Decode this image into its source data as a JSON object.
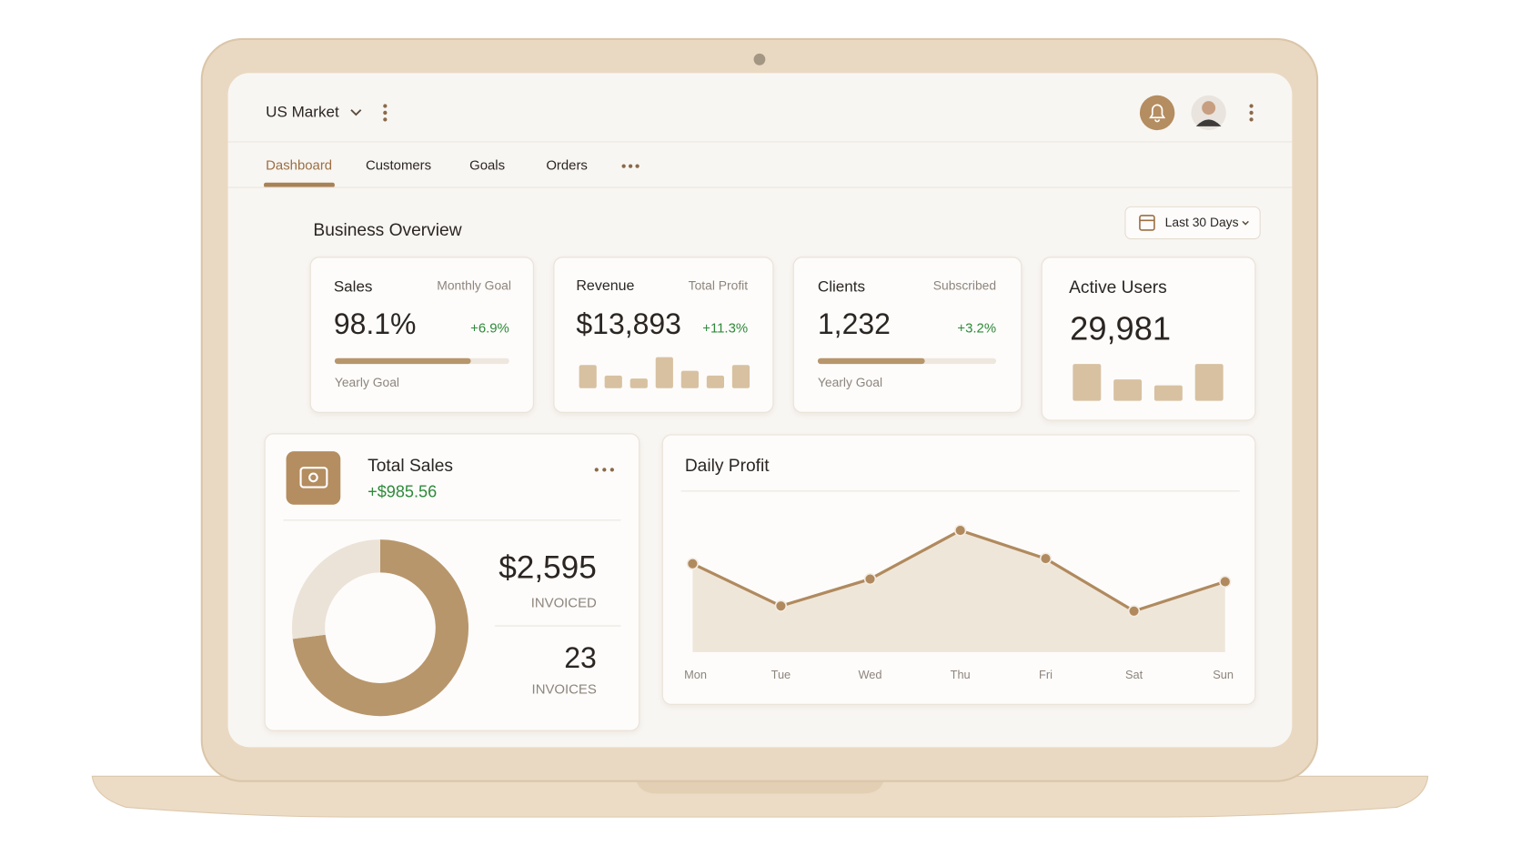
{
  "header": {
    "market": "US Market"
  },
  "tabs": [
    "Dashboard",
    "Customers",
    "Goals",
    "Orders"
  ],
  "overview": {
    "title": "Business Overview",
    "range": "Last 30 Days"
  },
  "cards": [
    {
      "title": "Sales",
      "note": "Monthly Goal",
      "value": "98.1%",
      "change": "+6.9%",
      "footer": "Yearly Goal",
      "progress": 78
    },
    {
      "title": "Revenue",
      "note": "Total Profit",
      "value": "$13,893",
      "change": "+11.3%",
      "bars": [
        24,
        13,
        10,
        32,
        18,
        13,
        24
      ]
    },
    {
      "title": "Clients",
      "note": "Subscribed",
      "value": "1,232",
      "change": "+3.2%",
      "footer": "Yearly Goal",
      "progress": 60
    },
    {
      "title": "Active Users",
      "value": "29,981",
      "bars": [
        38,
        22,
        16,
        38
      ]
    }
  ],
  "total_sales": {
    "title": "Total Sales",
    "change": "+$985.56",
    "invoiced": "$2,595",
    "invoiced_label": "INVOICED",
    "invoices": "23",
    "invoices_label": "INVOICES",
    "donut": [
      73,
      27
    ]
  },
  "daily_profit": {
    "title": "Daily Profit",
    "categories": [
      "Mon",
      "Tue",
      "Wed",
      "Thu",
      "Fri",
      "Sat",
      "Sun"
    ],
    "values": [
      69,
      36,
      57,
      95,
      73,
      32,
      55
    ],
    "ylim": [
      0,
      100
    ]
  }
}
